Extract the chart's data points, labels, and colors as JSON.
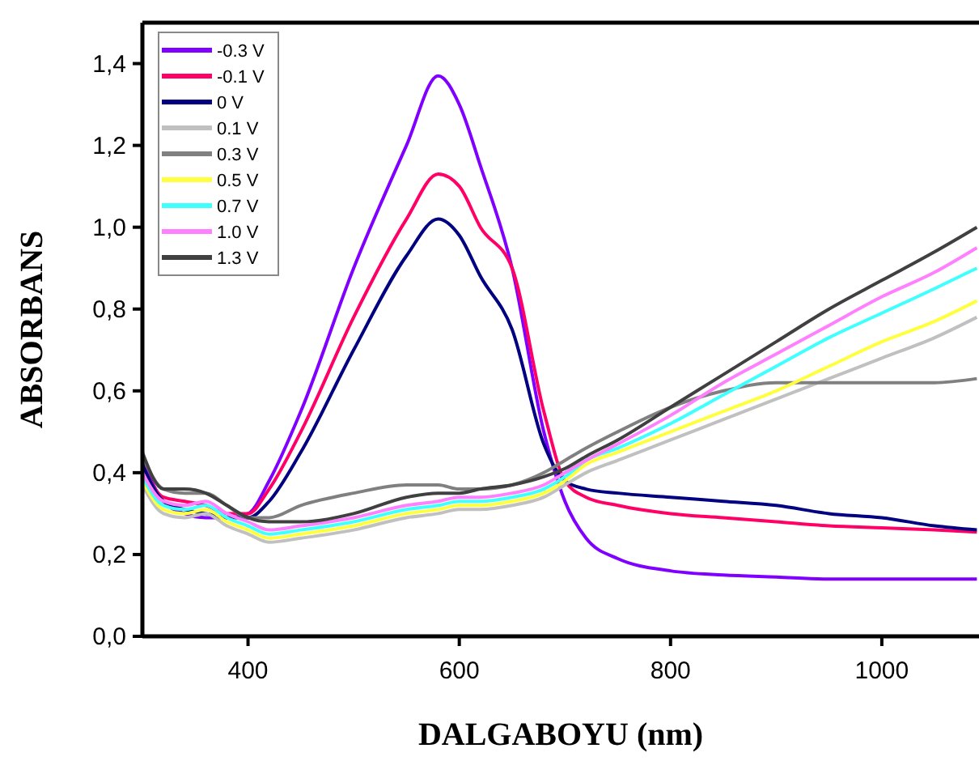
{
  "chart_data": {
    "type": "line",
    "xlabel": "DALGABOYU (nm)",
    "ylabel": "ABSORBANS",
    "x": [
      300,
      320,
      340,
      360,
      380,
      400,
      420,
      450,
      500,
      550,
      580,
      600,
      620,
      650,
      680,
      700,
      720,
      750,
      800,
      850,
      900,
      950,
      1000,
      1050,
      1090
    ],
    "series": [
      {
        "name": "-0.3 V",
        "color": "#8000ff",
        "values": [
          0.43,
          0.33,
          0.3,
          0.29,
          0.29,
          0.3,
          0.38,
          0.55,
          0.9,
          1.2,
          1.37,
          1.3,
          1.15,
          0.9,
          0.5,
          0.33,
          0.24,
          0.19,
          0.16,
          0.15,
          0.145,
          0.14,
          0.14,
          0.14,
          0.14
        ]
      },
      {
        "name": "-0.1 V",
        "color": "#ff0066",
        "values": [
          0.42,
          0.34,
          0.33,
          0.32,
          0.3,
          0.3,
          0.36,
          0.5,
          0.78,
          1.02,
          1.13,
          1.1,
          1.0,
          0.9,
          0.55,
          0.38,
          0.34,
          0.32,
          0.3,
          0.29,
          0.28,
          0.27,
          0.265,
          0.26,
          0.255
        ]
      },
      {
        "name": "0  V",
        "color": "#000080",
        "values": [
          0.42,
          0.33,
          0.31,
          0.3,
          0.29,
          0.29,
          0.33,
          0.45,
          0.7,
          0.93,
          1.02,
          0.98,
          0.88,
          0.75,
          0.47,
          0.38,
          0.36,
          0.35,
          0.34,
          0.33,
          0.32,
          0.3,
          0.29,
          0.27,
          0.26
        ]
      },
      {
        "name": "0.1 V",
        "color": "#c0c0c0",
        "values": [
          0.37,
          0.3,
          0.29,
          0.3,
          0.27,
          0.25,
          0.23,
          0.24,
          0.26,
          0.29,
          0.3,
          0.31,
          0.31,
          0.32,
          0.34,
          0.37,
          0.4,
          0.43,
          0.48,
          0.53,
          0.58,
          0.63,
          0.68,
          0.73,
          0.78
        ]
      },
      {
        "name": "0.3 V",
        "color": "#808080",
        "values": [
          0.44,
          0.36,
          0.35,
          0.35,
          0.32,
          0.29,
          0.29,
          0.32,
          0.35,
          0.37,
          0.37,
          0.36,
          0.36,
          0.37,
          0.4,
          0.43,
          0.46,
          0.5,
          0.56,
          0.6,
          0.62,
          0.62,
          0.62,
          0.62,
          0.63
        ]
      },
      {
        "name": "0.5 V",
        "color": "#ffff40",
        "values": [
          0.38,
          0.31,
          0.3,
          0.31,
          0.28,
          0.26,
          0.24,
          0.25,
          0.27,
          0.3,
          0.31,
          0.32,
          0.32,
          0.33,
          0.35,
          0.38,
          0.42,
          0.45,
          0.5,
          0.55,
          0.6,
          0.66,
          0.72,
          0.77,
          0.82
        ]
      },
      {
        "name": "0.7 V",
        "color": "#40ffff",
        "values": [
          0.39,
          0.32,
          0.31,
          0.32,
          0.29,
          0.27,
          0.25,
          0.26,
          0.28,
          0.31,
          0.32,
          0.33,
          0.33,
          0.34,
          0.36,
          0.39,
          0.43,
          0.46,
          0.52,
          0.59,
          0.66,
          0.73,
          0.79,
          0.85,
          0.9
        ]
      },
      {
        "name": "1.0 V",
        "color": "#ff80ff",
        "values": [
          0.4,
          0.33,
          0.32,
          0.33,
          0.3,
          0.28,
          0.26,
          0.27,
          0.29,
          0.32,
          0.33,
          0.34,
          0.34,
          0.35,
          0.37,
          0.4,
          0.43,
          0.47,
          0.54,
          0.62,
          0.69,
          0.76,
          0.83,
          0.89,
          0.95
        ]
      },
      {
        "name": "1.3 V",
        "color": "#404040",
        "values": [
          0.45,
          0.36,
          0.36,
          0.35,
          0.32,
          0.29,
          0.28,
          0.28,
          0.3,
          0.34,
          0.35,
          0.35,
          0.36,
          0.37,
          0.39,
          0.41,
          0.44,
          0.48,
          0.56,
          0.64,
          0.72,
          0.8,
          0.87,
          0.94,
          1.0
        ]
      }
    ],
    "xlim": [
      300,
      1092
    ],
    "xticks": [
      400,
      600,
      800,
      1000
    ],
    "ylim": [
      0,
      1.5
    ],
    "yticks": [
      {
        "value": 0,
        "label": "0,0"
      },
      {
        "value": 0.2,
        "label": "0,2"
      },
      {
        "value": 0.4,
        "label": "0,4"
      },
      {
        "value": 0.6,
        "label": "0,6"
      },
      {
        "value": 0.8,
        "label": "0,8"
      },
      {
        "value": 1.0,
        "label": "1,0"
      },
      {
        "value": 1.2,
        "label": "1,2"
      },
      {
        "value": 1.4,
        "label": "1,4"
      }
    ],
    "grid": false,
    "legend": "top left",
    "marker": "none",
    "line_style": "solid"
  }
}
